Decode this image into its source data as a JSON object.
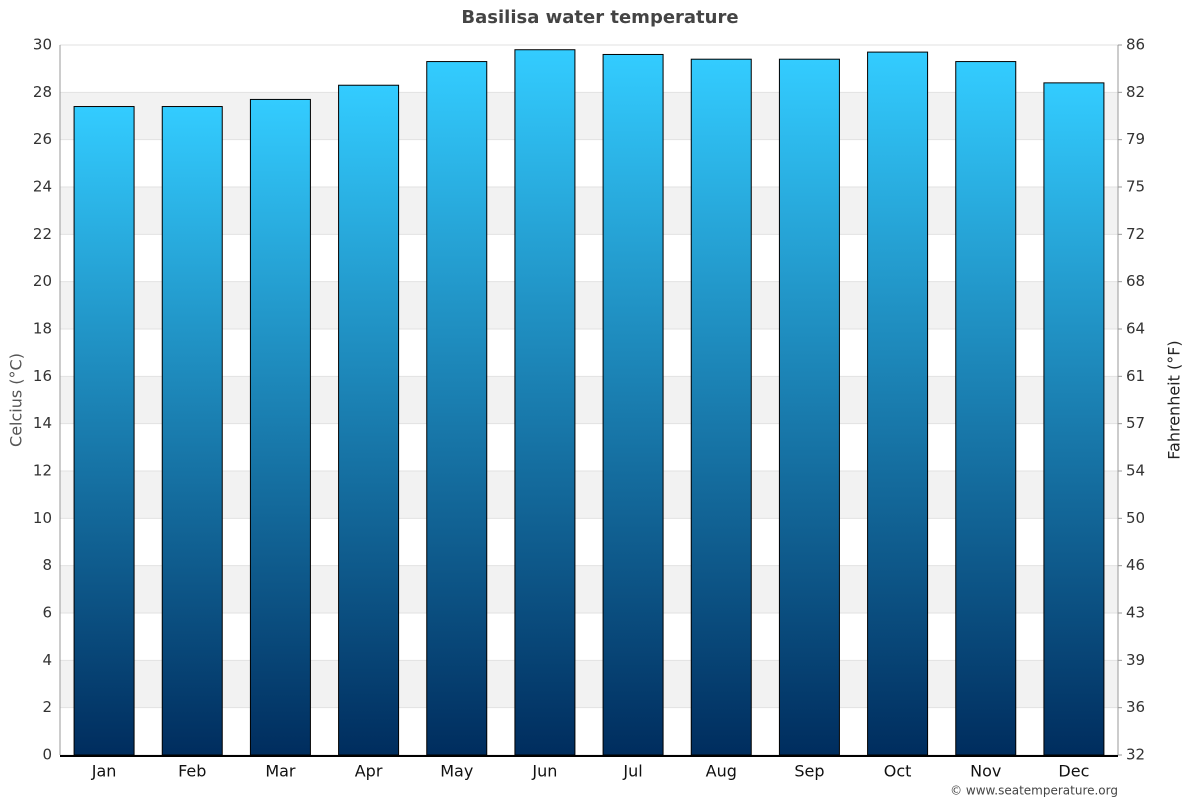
{
  "chart_data": {
    "type": "bar",
    "title": "Basilisa water temperature",
    "y_label": "Celcius (°C)",
    "y2_label": "Fahrenheit (°F)",
    "credit": "© www.seatemperature.org",
    "categories": [
      "Jan",
      "Feb",
      "Mar",
      "Apr",
      "May",
      "Jun",
      "Jul",
      "Aug",
      "Sep",
      "Oct",
      "Nov",
      "Dec"
    ],
    "values": [
      27.4,
      27.4,
      27.7,
      28.3,
      29.3,
      29.8,
      29.6,
      29.4,
      29.4,
      29.7,
      29.3,
      28.4
    ],
    "color": "#33ccff",
    "ylim": [
      0,
      30
    ],
    "yticks": [
      0,
      2,
      4,
      6,
      8,
      10,
      12,
      14,
      16,
      18,
      20,
      22,
      24,
      26,
      28,
      30
    ],
    "y2lim": [
      32,
      86
    ],
    "y2ticks": [
      32,
      {
        "value": 35.6,
        "label": "36"
      },
      {
        "value": 39.2,
        "label": "39"
      },
      {
        "value": 42.8,
        "label": "43"
      },
      {
        "value": 46.4,
        "label": "46"
      },
      50,
      {
        "value": 53.6,
        "label": "54"
      },
      {
        "value": 57.2,
        "label": "57"
      },
      {
        "value": 60.8,
        "label": "61"
      },
      {
        "value": 64.4,
        "label": "64"
      },
      68,
      {
        "value": 71.6,
        "label": "72"
      },
      {
        "value": 75.2,
        "label": "75"
      },
      {
        "value": 78.8,
        "label": "79"
      },
      {
        "value": 82.4,
        "label": "82"
      },
      86
    ],
    "grid": true
  }
}
